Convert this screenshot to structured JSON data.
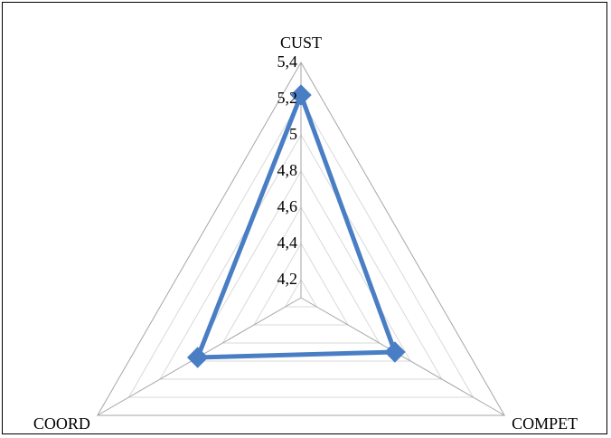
{
  "chart_data": {
    "type": "radar",
    "title": "",
    "categories": [
      "CUST",
      "COMPET",
      "COORD"
    ],
    "series": [
      {
        "values": [
          5.22,
          4.7,
          4.76
        ]
      }
    ],
    "rlim": [
      4.1,
      5.4
    ],
    "tick_values": [
      4.2,
      4.4,
      4.6,
      4.8,
      5,
      5.2,
      5.4
    ],
    "tick_labels": [
      "4,2",
      "4,4",
      "4,6",
      "4,8",
      "5",
      "5,2",
      "5,4"
    ],
    "grid": true,
    "legend": "none",
    "colors": {
      "series": "#4a7ec4",
      "grid": "#d9d9d9",
      "axis": "#a6a6a6"
    }
  }
}
